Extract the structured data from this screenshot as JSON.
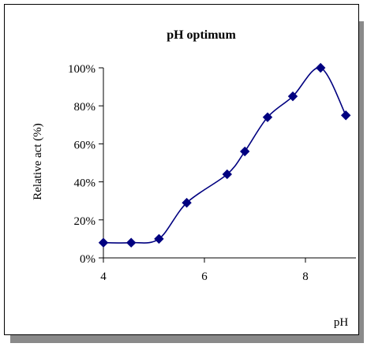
{
  "chart_data": {
    "type": "line",
    "title": "pH optimum",
    "xlabel": "pH",
    "ylabel": "Relative act (%)",
    "xlim": [
      4,
      9
    ],
    "ylim": [
      0,
      100
    ],
    "x_ticks": [
      4,
      6,
      8
    ],
    "x_tick_labels": [
      "4",
      "6",
      "8"
    ],
    "y_ticks": [
      0,
      20,
      40,
      60,
      80,
      100
    ],
    "y_tick_labels": [
      "0%",
      "20%",
      "40%",
      "60%",
      "80%",
      "100%"
    ],
    "grid": false,
    "legend": "none",
    "smooth": true,
    "series": [
      {
        "marker": "diamond",
        "color": "#000080",
        "x": [
          4.0,
          4.55,
          5.1,
          5.65,
          6.45,
          6.8,
          7.25,
          7.75,
          8.3,
          8.8
        ],
        "y": [
          8,
          8,
          10,
          29,
          44,
          56,
          74,
          85,
          100,
          75
        ]
      }
    ]
  }
}
